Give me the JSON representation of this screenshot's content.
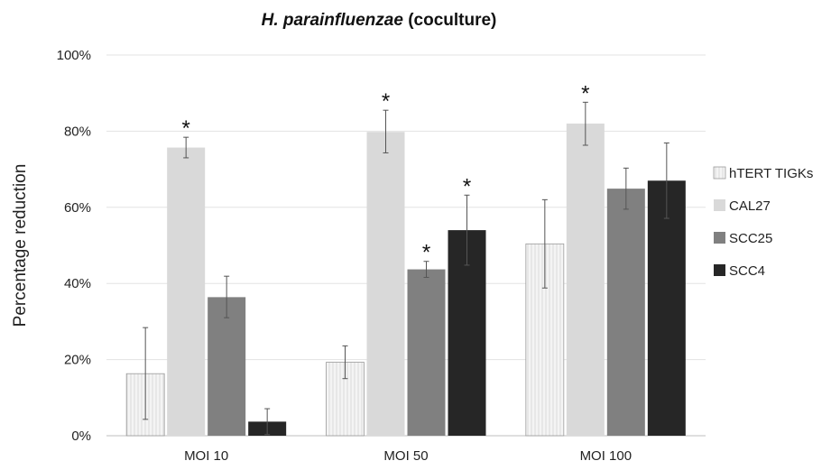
{
  "chart_data": {
    "type": "bar",
    "title_italic": "H. parainfluenzae",
    "title_rest": " (coculture)",
    "xlabel": "",
    "ylabel": "Percentage reduction",
    "ylim": [
      0,
      100
    ],
    "yticks": [
      0,
      20,
      40,
      60,
      80,
      100
    ],
    "ytick_labels": [
      "0%",
      "20%",
      "40%",
      "60%",
      "80%",
      "100%"
    ],
    "grid": true,
    "legend_position": "right",
    "categories": [
      "MOI 10",
      "MOI 50",
      "MOI 100"
    ],
    "series": [
      {
        "name": "hTERT TIGKs",
        "color": "#f2f2f2",
        "pattern": "vertical-stripes",
        "values": [
          16.3,
          19.3,
          50.4
        ],
        "err_low": [
          4.3,
          15.0,
          38.8
        ],
        "err_high": [
          28.4,
          23.6,
          62.0
        ],
        "significant": [
          false,
          false,
          false
        ]
      },
      {
        "name": "CAL27",
        "color": "#d9d9d9",
        "pattern": "none",
        "values": [
          75.7,
          79.8,
          82.0
        ],
        "err_low": [
          73.0,
          74.3,
          76.3
        ],
        "err_high": [
          78.4,
          85.5,
          87.6
        ],
        "significant": [
          true,
          true,
          true
        ]
      },
      {
        "name": "SCC25",
        "color": "#808080",
        "pattern": "none",
        "values": [
          36.4,
          43.7,
          64.9
        ],
        "err_low": [
          31.0,
          41.6,
          59.5
        ],
        "err_high": [
          41.9,
          45.8,
          70.3
        ],
        "significant": [
          false,
          true,
          false
        ]
      },
      {
        "name": "SCC4",
        "color": "#262626",
        "pattern": "none",
        "values": [
          3.7,
          54.0,
          67.0
        ],
        "err_low": [
          0.3,
          44.8,
          57.1
        ],
        "err_high": [
          7.1,
          63.2,
          76.9
        ],
        "significant": [
          false,
          true,
          false
        ]
      }
    ],
    "significance_marker": "*"
  }
}
